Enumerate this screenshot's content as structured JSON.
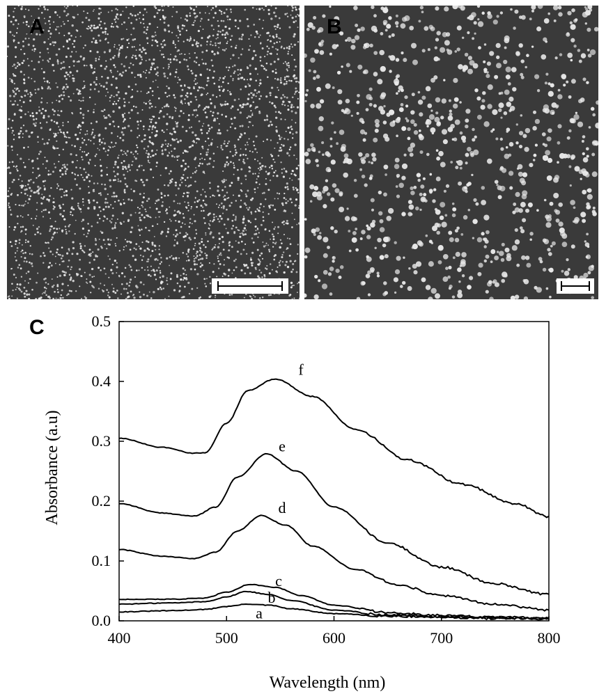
{
  "panels": {
    "a": {
      "letter": "A"
    },
    "b": {
      "letter": "B"
    },
    "c": {
      "letter": "C"
    }
  },
  "colors": {
    "sem_background": "#3a3a3a",
    "particle": "#e8e8e8",
    "line": "#000000"
  },
  "chart_data": {
    "type": "line",
    "xlabel": "Wavelength (nm)",
    "ylabel": "Absorbance (a.u)",
    "xlim": [
      400,
      800
    ],
    "ylim": [
      0,
      0.5
    ],
    "xticks": [
      400,
      500,
      600,
      700,
      800
    ],
    "yticks": [
      0.0,
      0.1,
      0.2,
      0.3,
      0.4,
      0.5
    ],
    "ytick_labels": [
      "0.0",
      "0.1",
      "0.2",
      "0.3",
      "0.4",
      "0.5"
    ],
    "grid": false,
    "series": [
      {
        "name": "a",
        "x": [
          400,
          450,
          480,
          500,
          520,
          540,
          560,
          600,
          650,
          700,
          750,
          800
        ],
        "values": [
          0.015,
          0.017,
          0.019,
          0.024,
          0.028,
          0.026,
          0.02,
          0.012,
          0.008,
          0.006,
          0.004,
          0.003
        ]
      },
      {
        "name": "b",
        "x": [
          400,
          450,
          480,
          500,
          518,
          540,
          560,
          600,
          650,
          700,
          750,
          800
        ],
        "values": [
          0.028,
          0.03,
          0.032,
          0.04,
          0.049,
          0.044,
          0.034,
          0.018,
          0.01,
          0.007,
          0.005,
          0.004
        ]
      },
      {
        "name": "c",
        "x": [
          400,
          450,
          480,
          500,
          522,
          545,
          570,
          600,
          650,
          700,
          750,
          800
        ],
        "values": [
          0.036,
          0.036,
          0.038,
          0.048,
          0.061,
          0.056,
          0.042,
          0.026,
          0.014,
          0.009,
          0.006,
          0.005
        ]
      },
      {
        "name": "d",
        "x": [
          400,
          440,
          470,
          490,
          510,
          532,
          555,
          580,
          620,
          660,
          700,
          750,
          800
        ],
        "values": [
          0.119,
          0.108,
          0.104,
          0.115,
          0.15,
          0.176,
          0.16,
          0.125,
          0.086,
          0.06,
          0.042,
          0.028,
          0.018
        ]
      },
      {
        "name": "e",
        "x": [
          400,
          440,
          470,
          490,
          510,
          537,
          565,
          600,
          650,
          700,
          750,
          800
        ],
        "values": [
          0.196,
          0.18,
          0.175,
          0.19,
          0.24,
          0.279,
          0.25,
          0.19,
          0.13,
          0.09,
          0.062,
          0.044
        ]
      },
      {
        "name": "f",
        "x": [
          400,
          440,
          470,
          480,
          500,
          520,
          545,
          580,
          620,
          670,
          720,
          770,
          800
        ],
        "values": [
          0.305,
          0.29,
          0.28,
          0.281,
          0.33,
          0.385,
          0.404,
          0.375,
          0.32,
          0.268,
          0.228,
          0.195,
          0.174
        ]
      }
    ]
  }
}
